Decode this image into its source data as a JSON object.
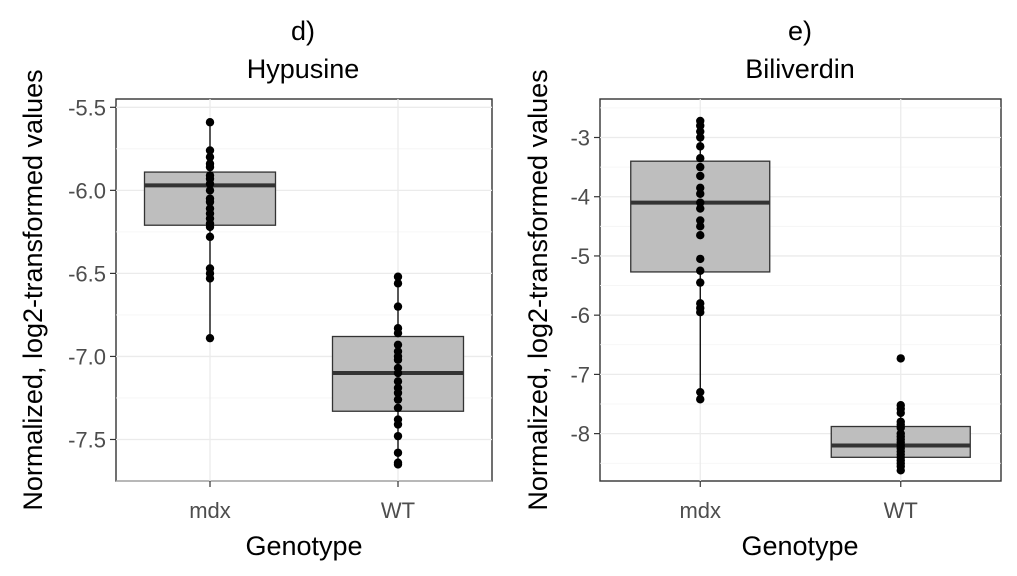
{
  "chart_data": [
    {
      "type": "box",
      "title_line1": "d)",
      "title_line2": "Hypusine",
      "xlabel": "Genotype",
      "ylabel": "Normalized, log2-transformed values",
      "categories": [
        "mdx",
        "WT"
      ],
      "ylim": [
        -7.75,
        -5.45
      ],
      "yticks": [
        -7.5,
        -7.0,
        -6.5,
        -6.0,
        -5.5
      ],
      "ytick_labels": [
        "-7.5",
        "-7.0",
        "-6.5",
        "-6.0",
        "-5.5"
      ],
      "box_fill": "#bebebe",
      "grid": true,
      "series": [
        {
          "category": "mdx",
          "min": -6.89,
          "q1": -6.21,
          "median": -5.97,
          "q3": -5.89,
          "max": -5.59,
          "points": [
            -5.59,
            -5.76,
            -5.8,
            -5.84,
            -5.86,
            -5.91,
            -5.93,
            -5.96,
            -6.0,
            -6.05,
            -6.07,
            -6.11,
            -6.14,
            -6.17,
            -6.2,
            -6.22,
            -6.28,
            -6.47,
            -6.5,
            -6.53,
            -6.89
          ]
        },
        {
          "category": "WT",
          "min": -7.65,
          "q1": -7.33,
          "median": -7.1,
          "q3": -6.88,
          "max": -6.52,
          "points": [
            -6.52,
            -6.56,
            -6.7,
            -6.83,
            -6.86,
            -6.93,
            -6.97,
            -7.0,
            -7.02,
            -7.07,
            -7.1,
            -7.15,
            -7.19,
            -7.22,
            -7.26,
            -7.31,
            -7.38,
            -7.41,
            -7.48,
            -7.58,
            -7.64,
            -7.65
          ]
        }
      ]
    },
    {
      "type": "box",
      "title_line1": "e)",
      "title_line2": "Biliverdin",
      "xlabel": "Genotype",
      "ylabel": "Normalized, log2-transformed values",
      "categories": [
        "mdx",
        "WT"
      ],
      "ylim": [
        -8.8,
        -2.35
      ],
      "yticks": [
        -8,
        -7,
        -6,
        -5,
        -4,
        -3
      ],
      "ytick_labels": [
        "-8",
        "-7",
        "-6",
        "-5",
        "-4",
        "-3"
      ],
      "box_fill": "#bebebe",
      "grid": true,
      "series": [
        {
          "category": "mdx",
          "min": -7.42,
          "q1": -5.27,
          "median": -4.1,
          "q3": -3.4,
          "max": -2.72,
          "points": [
            -2.72,
            -2.8,
            -2.9,
            -3.0,
            -3.15,
            -3.35,
            -3.5,
            -3.65,
            -3.85,
            -3.95,
            -4.1,
            -4.2,
            -4.4,
            -4.5,
            -4.65,
            -5.05,
            -5.25,
            -5.45,
            -5.8,
            -5.88,
            -5.95,
            -7.3,
            -7.42
          ]
        },
        {
          "category": "WT",
          "min": -8.62,
          "q1": -8.4,
          "median": -8.2,
          "q3": -7.88,
          "max": -7.52,
          "points": [
            -6.73,
            -7.52,
            -7.58,
            -7.65,
            -7.8,
            -7.85,
            -7.9,
            -8.0,
            -8.05,
            -8.1,
            -8.15,
            -8.2,
            -8.25,
            -8.3,
            -8.35,
            -8.4,
            -8.45,
            -8.5,
            -8.55,
            -8.62
          ]
        }
      ]
    }
  ]
}
